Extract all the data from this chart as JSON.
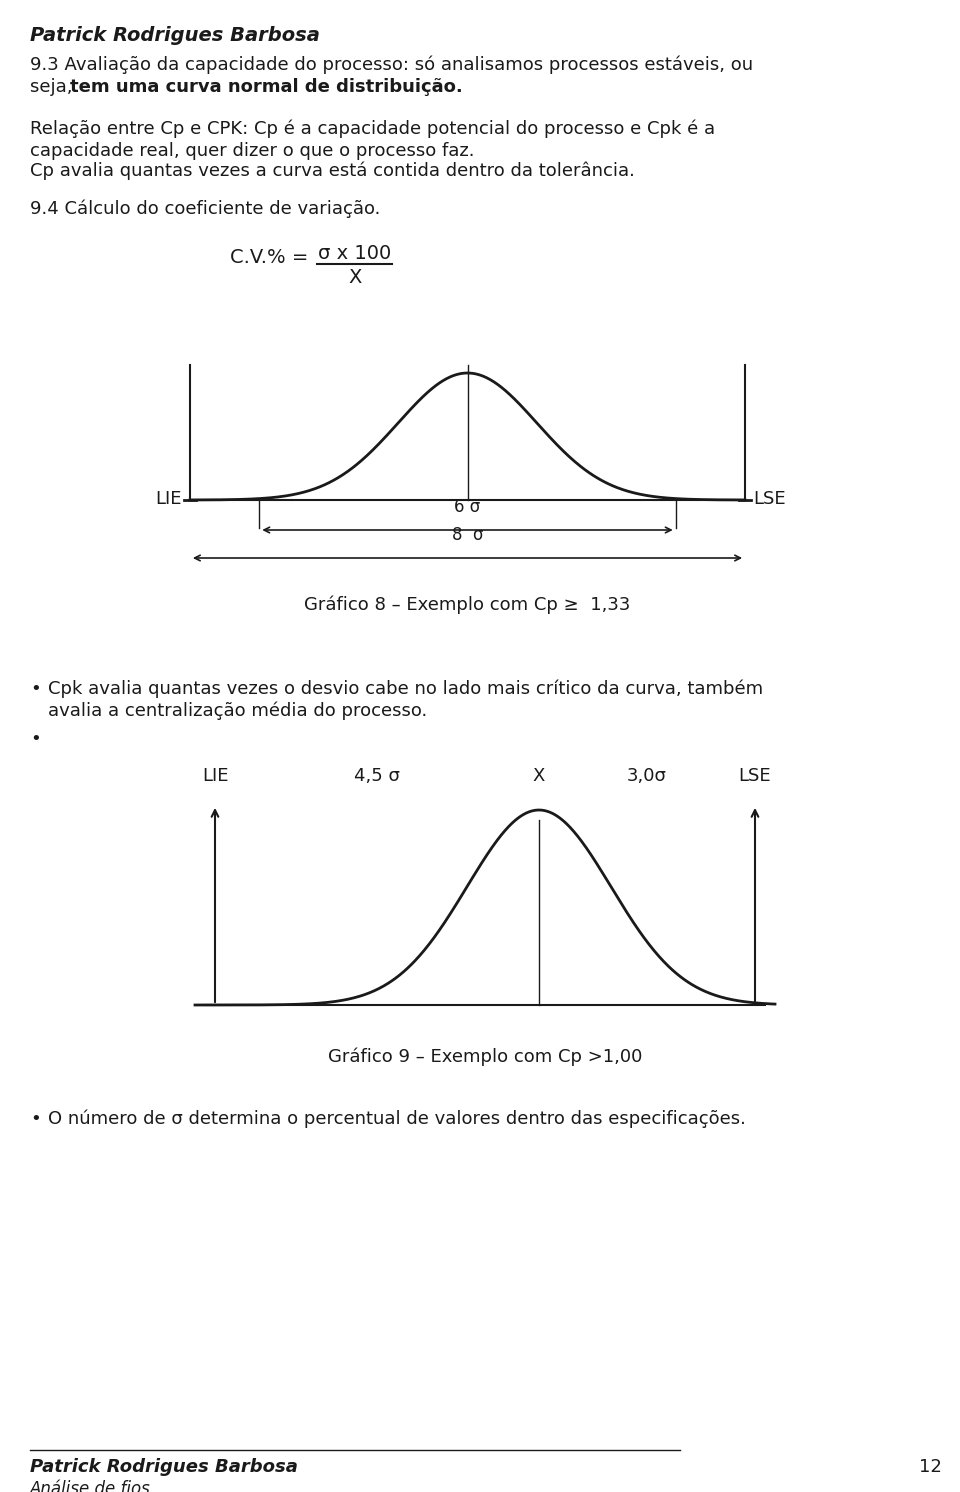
{
  "title_author": "Patrick Rodrigues Barbosa",
  "para1_line1": "9.3 Avaliação da capacidade do processo: só analisamos processos estáveis, ou",
  "para1_line2_normal": "seja, ",
  "para1_line2_bold": "tem uma curva normal de distribuição.",
  "para2_line1": "Relação entre Cp e CPK: Cp é a capacidade potencial do processo e Cpk é a",
  "para2_line2": "capacidade real, quer dizer o que o processo faz.",
  "para2_line3": "Cp avalia quantas vezes a curva está contida dentro da tolerância.",
  "para3": "9.4 Cálculo do coeficiente de variação.",
  "cv_prefix": "C.V.% = ",
  "cv_numerator": "σ x 100",
  "cv_denominator": "X",
  "graph8_caption": "Gráfico 8 – Exemplo com Cp ≥  1,33",
  "graph8_LIE": "LIE",
  "graph8_LSE": "LSE",
  "graph8_6sigma": "6 σ",
  "graph8_8sigma": "8  σ",
  "bullet1_line1": "Cpk avalia quantas vezes o desvio cabe no lado mais crítico da curva, também",
  "bullet1_line2": "avalia a centralização média do processo.",
  "graph9_caption": "Gráfico 9 – Exemplo com Cp >1,00",
  "graph9_LIE": "LIE",
  "graph9_45sigma": "4,5 σ",
  "graph9_X": "X",
  "graph9_30sigma": "3,0σ",
  "graph9_LSE": "LSE",
  "bullet3": "O número de σ determina o percentual de valores dentro das especificações.",
  "footer_author": "Patrick Rodrigues Barbosa",
  "footer_subtitle": "Análise de fios",
  "footer_page": "12",
  "bg_color": "#ffffff",
  "text_color": "#1a1a1a"
}
